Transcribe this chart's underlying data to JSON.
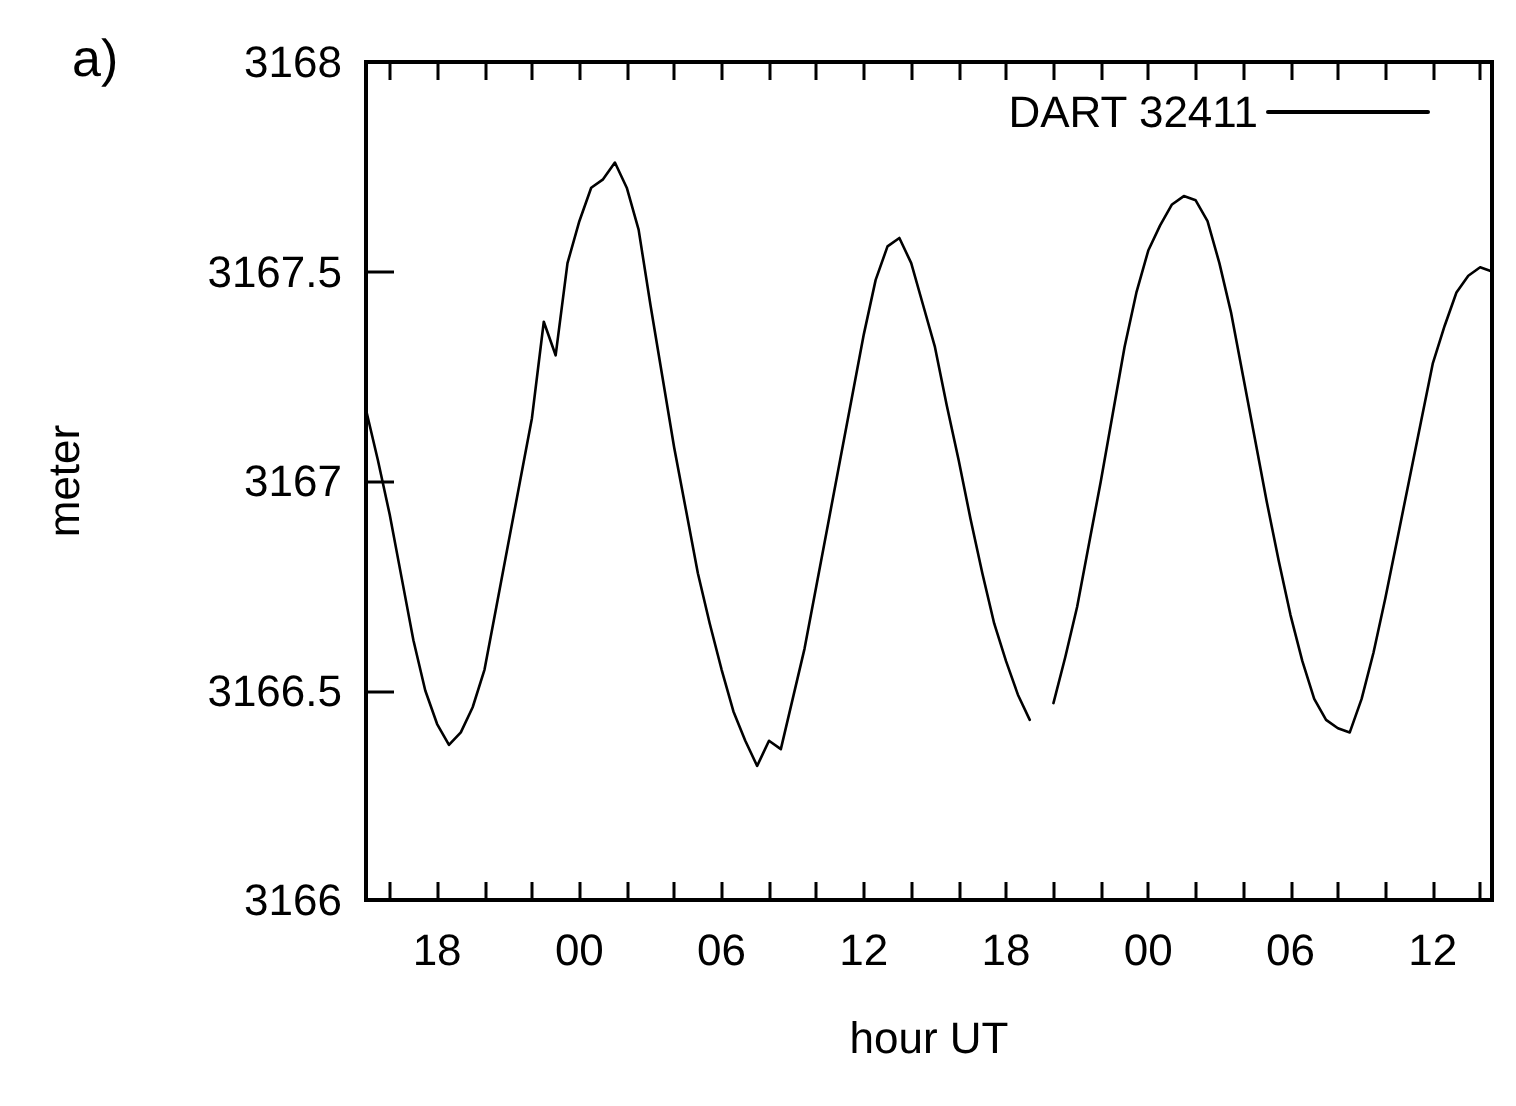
{
  "chart_data": {
    "type": "line",
    "xlabel": "hour UT",
    "ylabel": "meter",
    "annotations": [
      "a)"
    ],
    "categories": [
      null,
      null,
      null,
      null,
      null,
      null,
      "18",
      null,
      null,
      null,
      null,
      null,
      null,
      null,
      null,
      null,
      null,
      null,
      "00",
      null,
      null,
      null,
      null,
      null,
      null,
      null,
      null,
      null,
      null,
      null,
      "06",
      null,
      null,
      null,
      null,
      null,
      null,
      null,
      null,
      null,
      null,
      null,
      "12",
      null,
      null,
      null,
      null,
      null,
      null,
      null,
      null,
      null,
      null,
      null,
      "18",
      null,
      null,
      null,
      null,
      null,
      null,
      null,
      null,
      null,
      null,
      null,
      "00",
      null,
      null,
      null,
      null,
      null,
      null,
      null,
      null,
      null,
      null,
      null,
      "06",
      null,
      null,
      null,
      null,
      null,
      null,
      null,
      null,
      null,
      null,
      null,
      "12",
      null,
      null,
      null,
      null,
      null
    ],
    "ylim": [
      3166,
      3168
    ],
    "yticks": [
      3166,
      3166.5,
      3167,
      3167.5,
      3168
    ],
    "grid": false,
    "legend": "top right",
    "marker": "none",
    "line_style": "solid",
    "series": [
      {
        "name": "DART 32411",
        "color": "#000000",
        "values": [
          3167.17,
          3167.05,
          3166.92,
          3166.77,
          3166.62,
          3166.5,
          3166.42,
          3166.37,
          3166.4,
          3166.46,
          3166.55,
          3166.7,
          3166.85,
          3167,
          3167.15,
          3167.38,
          3167.3,
          3167.52,
          3167.62,
          3167.7,
          3167.72,
          3167.76,
          3167.7,
          3167.6,
          3167.42,
          3167.25,
          3167.08,
          3166.93,
          3166.78,
          3166.66,
          3166.55,
          3166.45,
          3166.38,
          3166.32,
          3166.38,
          3166.36,
          3166.48,
          3166.6,
          3166.75,
          3166.9,
          3167.05,
          3167.2,
          3167.35,
          3167.48,
          3167.56,
          3167.58,
          3167.52,
          3167.42,
          3167.32,
          3167.18,
          3167.05,
          3166.91,
          3166.78,
          3166.66,
          3166.57,
          3166.49,
          3166.43,
          null,
          3166.47,
          3166.58,
          3166.7,
          3166.85,
          3167,
          3167.16,
          3167.32,
          3167.45,
          3167.55,
          3167.61,
          3167.66,
          3167.68,
          3167.67,
          3167.62,
          3167.52,
          3167.4,
          3167.25,
          3167.1,
          3166.95,
          3166.81,
          3166.68,
          3166.57,
          3166.48,
          3166.43,
          3166.41,
          3166.4,
          3166.48,
          3166.59,
          3166.72,
          3166.86,
          3167,
          3167.14,
          3167.28,
          3167.37,
          3167.45,
          3167.49,
          3167.51,
          3167.5
        ]
      }
    ]
  }
}
